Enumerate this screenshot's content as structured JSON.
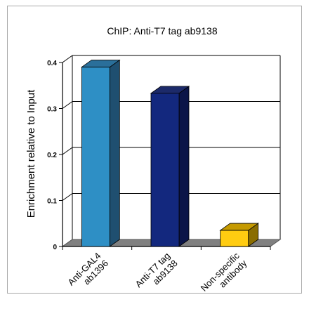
{
  "chart_data": {
    "type": "bar",
    "title": "ChIP: Anti-T7 tag ab9138",
    "xlabel": "",
    "ylabel": "Enrichment relative to Input",
    "ylim": [
      0,
      0.4
    ],
    "yticks": [
      "0",
      "0.1",
      "0.2",
      "0.3",
      "0.4"
    ],
    "grid": true,
    "categories": [
      [
        "Anti-GAL4",
        "ab1396"
      ],
      [
        "Anti-T7 tag",
        "ab9138"
      ],
      [
        "Non-specific",
        "antibody"
      ]
    ],
    "values": [
      0.39,
      0.333,
      0.035
    ],
    "colors": {
      "bars": [
        "#2e8fc5",
        "#13287e",
        "#ffcc11"
      ],
      "bar_sides": [
        "#1f4f70",
        "#0b1548",
        "#8a6d00"
      ],
      "bar_tops": [
        "#2a6f9a",
        "#1c2a6a",
        "#c59a00"
      ],
      "floor": "#808080"
    }
  }
}
